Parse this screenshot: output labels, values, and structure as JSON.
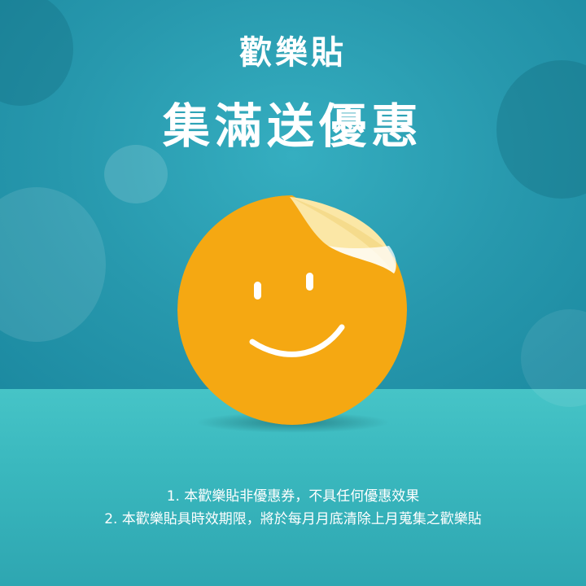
{
  "header": {
    "title_top": "歡樂貼",
    "title_main": "集滿送優惠"
  },
  "sticker": {
    "icon": "smiley-face-sticker-icon",
    "color": "#f5a812",
    "peel_color": "#fbe7a6"
  },
  "notes": [
    "1. 本歡樂貼非優惠券，不具任何優惠效果",
    "2. 本歡樂貼具時效期限，將於每月月底清除上月蒐集之歡樂貼"
  ],
  "colors": {
    "wall": "#2798ad",
    "floor": "#3ab8be",
    "text": "#ffffff"
  }
}
